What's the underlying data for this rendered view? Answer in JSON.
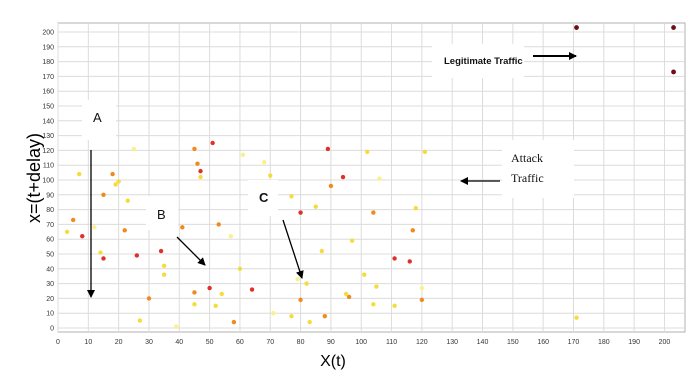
{
  "chart_data": {
    "type": "scatter",
    "title": "",
    "xlabel": "X(t)",
    "ylabel": "x=(t+delay)",
    "xlim": [
      0,
      204
    ],
    "ylim": [
      0,
      204
    ],
    "grid": true,
    "x_ticks": [
      0,
      10,
      20,
      30,
      40,
      50,
      60,
      70,
      80,
      90,
      100,
      110,
      120,
      130,
      140,
      150,
      160,
      170,
      180,
      190,
      200
    ],
    "y_ticks": [
      0,
      10,
      20,
      30,
      40,
      50,
      60,
      70,
      80,
      90,
      100,
      110,
      120,
      130,
      140,
      150,
      160,
      170,
      180,
      190,
      200
    ],
    "colors": {
      "dark_red": "#6b0f14",
      "red": "#e0302a",
      "orange": "#f08a1e",
      "yellow": "#f5dc3c",
      "pale_yellow": "#faf08c"
    },
    "points": [
      {
        "x": 3,
        "y": 65,
        "c": "yellow"
      },
      {
        "x": 5,
        "y": 73,
        "c": "orange"
      },
      {
        "x": 7,
        "y": 104,
        "c": "yellow"
      },
      {
        "x": 8,
        "y": 62,
        "c": "red"
      },
      {
        "x": 12,
        "y": 68,
        "c": "pale_yellow"
      },
      {
        "x": 14,
        "y": 51,
        "c": "yellow"
      },
      {
        "x": 15,
        "y": 90,
        "c": "orange"
      },
      {
        "x": 15,
        "y": 47,
        "c": "red"
      },
      {
        "x": 18,
        "y": 104,
        "c": "orange"
      },
      {
        "x": 19,
        "y": 97,
        "c": "yellow"
      },
      {
        "x": 20,
        "y": 99,
        "c": "yellow"
      },
      {
        "x": 22,
        "y": 66,
        "c": "orange"
      },
      {
        "x": 23,
        "y": 86,
        "c": "yellow"
      },
      {
        "x": 25,
        "y": 121,
        "c": "pale_yellow"
      },
      {
        "x": 26,
        "y": 49,
        "c": "red"
      },
      {
        "x": 27,
        "y": 5,
        "c": "yellow"
      },
      {
        "x": 30,
        "y": 20,
        "c": "orange"
      },
      {
        "x": 34,
        "y": 52,
        "c": "red"
      },
      {
        "x": 35,
        "y": 42,
        "c": "yellow"
      },
      {
        "x": 35,
        "y": 36,
        "c": "yellow"
      },
      {
        "x": 39,
        "y": 1,
        "c": "pale_yellow"
      },
      {
        "x": 41,
        "y": 68,
        "c": "orange"
      },
      {
        "x": 45,
        "y": 121,
        "c": "orange"
      },
      {
        "x": 45,
        "y": 24,
        "c": "orange"
      },
      {
        "x": 45,
        "y": 16,
        "c": "yellow"
      },
      {
        "x": 46,
        "y": 111,
        "c": "orange"
      },
      {
        "x": 47,
        "y": 106,
        "c": "red"
      },
      {
        "x": 47,
        "y": 102,
        "c": "yellow"
      },
      {
        "x": 50,
        "y": 27,
        "c": "red"
      },
      {
        "x": 51,
        "y": 125,
        "c": "red"
      },
      {
        "x": 52,
        "y": 15,
        "c": "yellow"
      },
      {
        "x": 53,
        "y": 70,
        "c": "orange"
      },
      {
        "x": 54,
        "y": 23,
        "c": "yellow"
      },
      {
        "x": 57,
        "y": 62,
        "c": "pale_yellow"
      },
      {
        "x": 58,
        "y": 4,
        "c": "orange"
      },
      {
        "x": 60,
        "y": 40,
        "c": "yellow"
      },
      {
        "x": 61,
        "y": 117,
        "c": "pale_yellow"
      },
      {
        "x": 64,
        "y": 26,
        "c": "red"
      },
      {
        "x": 68,
        "y": 112,
        "c": "pale_yellow"
      },
      {
        "x": 70,
        "y": 103,
        "c": "yellow"
      },
      {
        "x": 71,
        "y": 10,
        "c": "pale_yellow"
      },
      {
        "x": 77,
        "y": 89,
        "c": "yellow"
      },
      {
        "x": 77,
        "y": 8,
        "c": "yellow"
      },
      {
        "x": 79,
        "y": 33,
        "c": "pale_yellow"
      },
      {
        "x": 80,
        "y": 78,
        "c": "red"
      },
      {
        "x": 80,
        "y": 19,
        "c": "orange"
      },
      {
        "x": 82,
        "y": 30,
        "c": "yellow"
      },
      {
        "x": 83,
        "y": 4,
        "c": "yellow"
      },
      {
        "x": 85,
        "y": 82,
        "c": "yellow"
      },
      {
        "x": 87,
        "y": 52,
        "c": "yellow"
      },
      {
        "x": 88,
        "y": 8,
        "c": "orange"
      },
      {
        "x": 89,
        "y": 121,
        "c": "red"
      },
      {
        "x": 90,
        "y": 96,
        "c": "orange"
      },
      {
        "x": 94,
        "y": 102,
        "c": "red"
      },
      {
        "x": 95,
        "y": 23,
        "c": "yellow"
      },
      {
        "x": 96,
        "y": 21,
        "c": "orange"
      },
      {
        "x": 97,
        "y": 59,
        "c": "yellow"
      },
      {
        "x": 101,
        "y": 36,
        "c": "yellow"
      },
      {
        "x": 102,
        "y": 119,
        "c": "yellow"
      },
      {
        "x": 104,
        "y": 78,
        "c": "orange"
      },
      {
        "x": 104,
        "y": 16,
        "c": "yellow"
      },
      {
        "x": 105,
        "y": 28,
        "c": "yellow"
      },
      {
        "x": 106,
        "y": 101,
        "c": "pale_yellow"
      },
      {
        "x": 111,
        "y": 47,
        "c": "red"
      },
      {
        "x": 111,
        "y": 15,
        "c": "yellow"
      },
      {
        "x": 116,
        "y": 45,
        "c": "red"
      },
      {
        "x": 117,
        "y": 66,
        "c": "orange"
      },
      {
        "x": 118,
        "y": 81,
        "c": "yellow"
      },
      {
        "x": 120,
        "y": 19,
        "c": "orange"
      },
      {
        "x": 120,
        "y": 27,
        "c": "pale_yellow"
      },
      {
        "x": 121,
        "y": 119,
        "c": "yellow"
      },
      {
        "x": 171,
        "y": 7,
        "c": "yellow"
      },
      {
        "x": 171,
        "y": 203,
        "c": "dark_red"
      },
      {
        "x": 203,
        "y": 203,
        "c": "dark_red"
      },
      {
        "x": 203,
        "y": 173,
        "c": "dark_red"
      }
    ],
    "annotations": [
      {
        "name": "legitimate-traffic",
        "text": "Legitimate Traffic"
      },
      {
        "name": "attack-traffic-line1",
        "text": "Attack"
      },
      {
        "name": "attack-traffic-line2",
        "text": "Traffic"
      },
      {
        "name": "label-a",
        "text": "A"
      },
      {
        "name": "label-b",
        "text": "B"
      },
      {
        "name": "label-c",
        "text": "C"
      }
    ]
  }
}
